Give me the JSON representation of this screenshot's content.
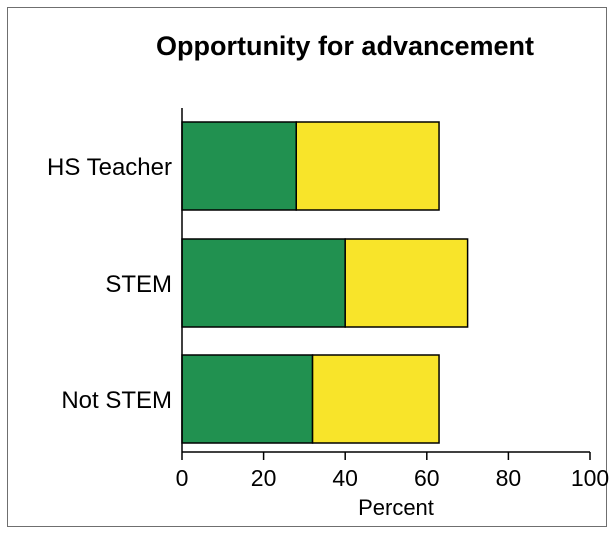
{
  "chart_data": {
    "type": "bar",
    "orientation": "horizontal",
    "stacked": true,
    "title": "Opportunity for advancement",
    "xlabel": "Percent",
    "ylabel": "",
    "xlim": [
      0,
      100
    ],
    "xticks": [
      "0",
      "20",
      "40",
      "60",
      "80",
      "100"
    ],
    "categories": [
      "HS Teacher",
      "STEM",
      "Not STEM"
    ],
    "series": [
      {
        "color": "#219150",
        "values": [
          28,
          40,
          32
        ]
      },
      {
        "color": "#f8e42a",
        "values": [
          35,
          30,
          31
        ]
      }
    ],
    "grid": false,
    "legend": "none"
  }
}
